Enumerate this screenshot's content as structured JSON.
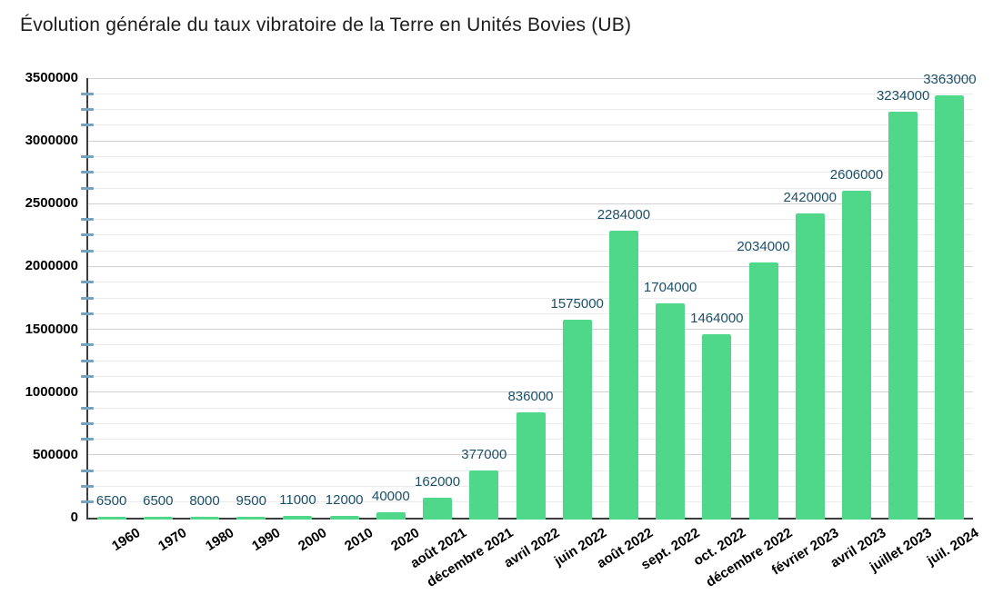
{
  "title": "Évolution générale du taux vibratoire de la Terre en Unités Bovies (UB)",
  "chart_data": {
    "type": "bar",
    "title": "Évolution générale du taux vibratoire de la Terre en Unités Bovies (UB)",
    "categories": [
      "1960",
      "1970",
      "1980",
      "1990",
      "2000",
      "2010",
      "2020",
      "août 2021",
      "décembre 2021",
      "avril 2022",
      "juin 2022",
      "août 2022",
      "sept. 2022",
      "oct. 2022",
      "décembre 2022",
      "février 2023",
      "avril 2023",
      "juillet 2023",
      "juil. 2024"
    ],
    "values": [
      6500,
      6500,
      8000,
      9500,
      11000,
      12000,
      40000,
      162000,
      377000,
      836000,
      1575000,
      2284000,
      1704000,
      1464000,
      2034000,
      2420000,
      2606000,
      3234000,
      3363000
    ],
    "xlabel": "",
    "ylabel": "",
    "ylim": [
      0,
      3500000
    ],
    "y_major_step": 500000,
    "y_minor_step": 125000,
    "y_tick_labels": [
      "0",
      "500000",
      "1000000",
      "1500000",
      "2000000",
      "2500000",
      "3000000",
      "3500000"
    ],
    "grid": "on",
    "legend": "none",
    "data_labels": "on",
    "colors": {
      "bar": "#50d88a",
      "value_label": "#1b4f68",
      "axis_line": "#3d3d3d",
      "major_grid": "#d2d2d2",
      "minor_grid": "#ececec",
      "minor_tick": "#74a3bf",
      "axis_text": "#000000",
      "title_text": "#1c1c1c"
    }
  }
}
